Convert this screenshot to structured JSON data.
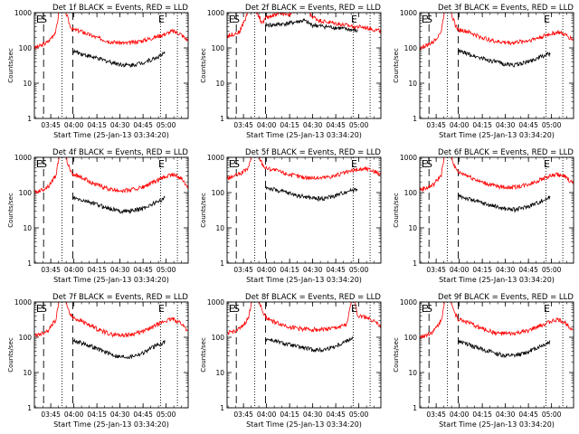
{
  "common": {
    "title_template": "Det {det}f BLACK = Events, RED = LLD",
    "xlabel": "Start Time (25-Jan-13 03:34:20)",
    "ylabel": "Counts/sec",
    "x_ticks": [
      "03:45",
      "04:00",
      "04:15",
      "04:30",
      "04:45",
      "05:00"
    ],
    "y_ticks": [
      "1",
      "10",
      "100",
      "1000"
    ],
    "colors": {
      "events": "#000000",
      "lld": "#ff0000",
      "axes": "#000000"
    }
  },
  "chart_data": [
    {
      "type": "line",
      "title": "Det 1f BLACK = Events, RED = LLD",
      "xlabel": "Start Time (25-Jan-13 03:34:20)",
      "ylabel": "Counts/sec",
      "ylim": [
        1,
        1000
      ],
      "yscale": "log",
      "xlim_minutes_after_start": [
        0,
        100
      ],
      "dashed_lines": [
        6,
        25
      ],
      "dotted_lines": [
        18,
        82,
        93
      ],
      "markers": [
        {
          "x": 0.5,
          "label": "E"
        },
        {
          "x": 3.5,
          "label": "S"
        },
        {
          "x": 80,
          "label": "E"
        }
      ],
      "series": [
        {
          "name": "LLD",
          "color": "red",
          "x": [
            0,
            5,
            9,
            14,
            17,
            20,
            23,
            25,
            30,
            40,
            50,
            60,
            70,
            78,
            85,
            90,
            95,
            100
          ],
          "y": [
            100,
            120,
            150,
            300,
            2000,
            1200,
            450,
            330,
            300,
            200,
            150,
            135,
            160,
            200,
            250,
            300,
            250,
            160
          ]
        },
        {
          "name": "Events",
          "color": "black",
          "x": [
            25,
            28,
            35,
            45,
            55,
            62,
            70,
            78,
            85
          ],
          "y": [
            80,
            75,
            60,
            45,
            35,
            32,
            38,
            50,
            70
          ]
        }
      ]
    },
    {
      "type": "line",
      "title": "Det 2f BLACK = Events, RED = LLD",
      "xlabel": "Start Time (25-Jan-13 03:34:20)",
      "ylabel": "Counts/sec",
      "ylim": [
        1,
        1000
      ],
      "yscale": "log",
      "xlim_minutes_after_start": [
        0,
        100
      ],
      "dashed_lines": [
        6,
        25
      ],
      "dotted_lines": [
        18,
        82,
        93
      ],
      "markers": [
        {
          "x": 0.5,
          "label": "E"
        },
        {
          "x": 3.5,
          "label": "S"
        },
        {
          "x": 80,
          "label": "E"
        }
      ],
      "series": [
        {
          "name": "LLD",
          "color": "red",
          "x": [
            0,
            8,
            12,
            16,
            20,
            23,
            25,
            30,
            35,
            40,
            45,
            50,
            55,
            60,
            70,
            80,
            90,
            100
          ],
          "y": [
            220,
            280,
            700,
            2200,
            900,
            500,
            700,
            850,
            1000,
            900,
            1100,
            1500,
            800,
            600,
            500,
            420,
            380,
            300
          ]
        },
        {
          "name": "Events",
          "color": "black",
          "x": [
            25,
            30,
            40,
            50,
            55,
            60,
            70,
            80,
            85
          ],
          "y": [
            450,
            450,
            500,
            600,
            450,
            420,
            380,
            330,
            300
          ]
        }
      ]
    },
    {
      "type": "line",
      "title": "Det 3f BLACK = Events, RED = LLD",
      "xlabel": "Start Time (25-Jan-13 03:34:20)",
      "ylabel": "Counts/sec",
      "ylim": [
        1,
        1000
      ],
      "yscale": "log",
      "xlim_minutes_after_start": [
        0,
        100
      ],
      "dashed_lines": [
        6,
        25
      ],
      "dotted_lines": [
        18,
        82,
        93
      ],
      "markers": [
        {
          "x": 0.5,
          "label": "E"
        },
        {
          "x": 3.5,
          "label": "S"
        },
        {
          "x": 80,
          "label": "E"
        }
      ],
      "series": [
        {
          "name": "LLD",
          "color": "red",
          "x": [
            0,
            5,
            9,
            14,
            17,
            20,
            23,
            25,
            30,
            40,
            50,
            60,
            70,
            78,
            85,
            90,
            95,
            100
          ],
          "y": [
            100,
            120,
            150,
            300,
            2000,
            1200,
            450,
            330,
            300,
            200,
            150,
            140,
            160,
            200,
            250,
            280,
            230,
            170
          ]
        },
        {
          "name": "Events",
          "color": "black",
          "x": [
            25,
            28,
            35,
            45,
            55,
            62,
            70,
            78,
            85
          ],
          "y": [
            80,
            75,
            60,
            45,
            35,
            33,
            40,
            55,
            70
          ]
        }
      ]
    },
    {
      "type": "line",
      "title": "Det 4f BLACK = Events, RED = LLD",
      "xlabel": "Start Time (25-Jan-13 03:34:20)",
      "ylabel": "Counts/sec",
      "ylim": [
        1,
        1000
      ],
      "yscale": "log",
      "xlim_minutes_after_start": [
        0,
        100
      ],
      "dashed_lines": [
        6,
        25
      ],
      "dotted_lines": [
        18,
        82,
        93
      ],
      "markers": [
        {
          "x": 0.5,
          "label": "E"
        },
        {
          "x": 3.5,
          "label": "S"
        },
        {
          "x": 80,
          "label": "E"
        }
      ],
      "series": [
        {
          "name": "LLD",
          "color": "red",
          "x": [
            0,
            5,
            9,
            14,
            17,
            20,
            23,
            25,
            30,
            40,
            50,
            60,
            70,
            78,
            85,
            90,
            95,
            100
          ],
          "y": [
            100,
            120,
            150,
            300,
            2000,
            1200,
            450,
            330,
            280,
            170,
            120,
            115,
            140,
            200,
            280,
            330,
            260,
            150
          ]
        },
        {
          "name": "Events",
          "color": "black",
          "x": [
            25,
            28,
            35,
            45,
            55,
            62,
            70,
            78,
            85
          ],
          "y": [
            70,
            65,
            55,
            40,
            30,
            30,
            35,
            50,
            70
          ]
        }
      ]
    },
    {
      "type": "line",
      "title": "Det 5f BLACK = Events, RED = LLD",
      "xlabel": "Start Time (25-Jan-13 03:34:20)",
      "ylabel": "Counts/sec",
      "ylim": [
        1,
        1000
      ],
      "yscale": "log",
      "xlim_minutes_after_start": [
        0,
        100
      ],
      "dashed_lines": [
        6,
        25
      ],
      "dotted_lines": [
        18,
        82,
        93
      ],
      "markers": [
        {
          "x": 0.5,
          "label": "E"
        },
        {
          "x": 3.5,
          "label": "S"
        },
        {
          "x": 80,
          "label": "E"
        }
      ],
      "series": [
        {
          "name": "LLD",
          "color": "red",
          "x": [
            0,
            5,
            9,
            14,
            17,
            20,
            23,
            25,
            30,
            40,
            50,
            60,
            70,
            78,
            85,
            90,
            95,
            100
          ],
          "y": [
            250,
            300,
            350,
            500,
            2000,
            1200,
            650,
            500,
            450,
            330,
            270,
            260,
            300,
            380,
            450,
            480,
            420,
            320
          ]
        },
        {
          "name": "Events",
          "color": "black",
          "x": [
            25,
            28,
            35,
            45,
            55,
            62,
            70,
            78,
            85
          ],
          "y": [
            140,
            130,
            110,
            85,
            70,
            68,
            80,
            110,
            130
          ]
        }
      ]
    },
    {
      "type": "line",
      "title": "Det 6f BLACK = Events, RED = LLD",
      "xlabel": "Start Time (25-Jan-13 03:34:20)",
      "ylabel": "Counts/sec",
      "ylim": [
        1,
        1000
      ],
      "yscale": "log",
      "xlim_minutes_after_start": [
        0,
        100
      ],
      "dashed_lines": [
        6,
        25
      ],
      "dotted_lines": [
        18,
        82,
        93
      ],
      "markers": [
        {
          "x": 0.5,
          "label": "E"
        },
        {
          "x": 3.5,
          "label": "S"
        },
        {
          "x": 80,
          "label": "E"
        }
      ],
      "series": [
        {
          "name": "LLD",
          "color": "red",
          "x": [
            0,
            5,
            9,
            14,
            17,
            20,
            23,
            25,
            30,
            40,
            50,
            60,
            70,
            78,
            85,
            90,
            95,
            100
          ],
          "y": [
            120,
            140,
            170,
            320,
            2000,
            1200,
            500,
            380,
            320,
            200,
            150,
            140,
            170,
            230,
            300,
            330,
            270,
            180
          ]
        },
        {
          "name": "Events",
          "color": "black",
          "x": [
            25,
            28,
            35,
            45,
            55,
            62,
            70,
            78,
            85
          ],
          "y": [
            80,
            75,
            60,
            45,
            35,
            33,
            40,
            55,
            75
          ]
        }
      ]
    },
    {
      "type": "line",
      "title": "Det 7f BLACK = Events, RED = LLD",
      "xlabel": "Start Time (25-Jan-13 03:34:20)",
      "ylabel": "Counts/sec",
      "ylim": [
        1,
        1000
      ],
      "yscale": "log",
      "xlim_minutes_after_start": [
        0,
        100
      ],
      "dashed_lines": [
        6,
        25
      ],
      "dotted_lines": [
        18,
        82,
        93
      ],
      "markers": [
        {
          "x": 0.5,
          "label": "E"
        },
        {
          "x": 3.5,
          "label": "S"
        },
        {
          "x": 80,
          "label": "E"
        }
      ],
      "series": [
        {
          "name": "LLD",
          "color": "red",
          "x": [
            0,
            5,
            9,
            14,
            17,
            20,
            23,
            25,
            30,
            40,
            50,
            60,
            70,
            78,
            85,
            90,
            95,
            100
          ],
          "y": [
            110,
            130,
            160,
            320,
            2000,
            1200,
            480,
            360,
            300,
            180,
            120,
            115,
            140,
            210,
            290,
            330,
            260,
            150
          ]
        },
        {
          "name": "Events",
          "color": "black",
          "x": [
            25,
            28,
            35,
            45,
            55,
            62,
            70,
            78,
            85
          ],
          "y": [
            80,
            75,
            60,
            40,
            28,
            28,
            35,
            55,
            75
          ]
        }
      ]
    },
    {
      "type": "line",
      "title": "Det 8f BLACK = Events, RED = LLD",
      "xlabel": "Start Time (25-Jan-13 03:34:20)",
      "ylabel": "Counts/sec",
      "ylim": [
        1,
        1000
      ],
      "yscale": "log",
      "xlim_minutes_after_start": [
        0,
        100
      ],
      "dashed_lines": [
        6,
        25
      ],
      "dotted_lines": [
        18,
        82,
        93
      ],
      "markers": [
        {
          "x": 0.5,
          "label": "E"
        },
        {
          "x": 3.5,
          "label": "S"
        },
        {
          "x": 80,
          "label": "E"
        }
      ],
      "series": [
        {
          "name": "LLD",
          "color": "red",
          "x": [
            0,
            5,
            9,
            14,
            17,
            20,
            23,
            25,
            30,
            40,
            50,
            60,
            70,
            78,
            82,
            85,
            90,
            95,
            100
          ],
          "y": [
            130,
            150,
            180,
            350,
            2000,
            1300,
            550,
            380,
            280,
            200,
            170,
            165,
            180,
            230,
            2000,
            400,
            380,
            300,
            200
          ]
        },
        {
          "name": "Events",
          "color": "black",
          "x": [
            25,
            28,
            35,
            45,
            55,
            62,
            70,
            78,
            82
          ],
          "y": [
            90,
            85,
            70,
            55,
            45,
            43,
            55,
            80,
            100
          ]
        }
      ]
    },
    {
      "type": "line",
      "title": "Det 9f BLACK = Events, RED = LLD",
      "xlabel": "Start Time (25-Jan-13 03:34:20)",
      "ylabel": "Counts/sec",
      "ylim": [
        1,
        1000
      ],
      "yscale": "log",
      "xlim_minutes_after_start": [
        0,
        100
      ],
      "dashed_lines": [
        6,
        25
      ],
      "dotted_lines": [
        18,
        82,
        93
      ],
      "markers": [
        {
          "x": 0.5,
          "label": "E"
        },
        {
          "x": 3.5,
          "label": "S"
        },
        {
          "x": 80,
          "label": "E"
        }
      ],
      "series": [
        {
          "name": "LLD",
          "color": "red",
          "x": [
            0,
            5,
            9,
            14,
            17,
            20,
            23,
            25,
            30,
            40,
            50,
            60,
            70,
            78,
            85,
            90,
            95,
            100
          ],
          "y": [
            100,
            120,
            150,
            300,
            2000,
            1200,
            450,
            330,
            280,
            180,
            130,
            125,
            150,
            210,
            280,
            320,
            250,
            160
          ]
        },
        {
          "name": "Events",
          "color": "black",
          "x": [
            25,
            28,
            35,
            45,
            55,
            62,
            70,
            78,
            85
          ],
          "y": [
            75,
            70,
            55,
            40,
            30,
            30,
            38,
            55,
            75
          ]
        }
      ]
    }
  ]
}
